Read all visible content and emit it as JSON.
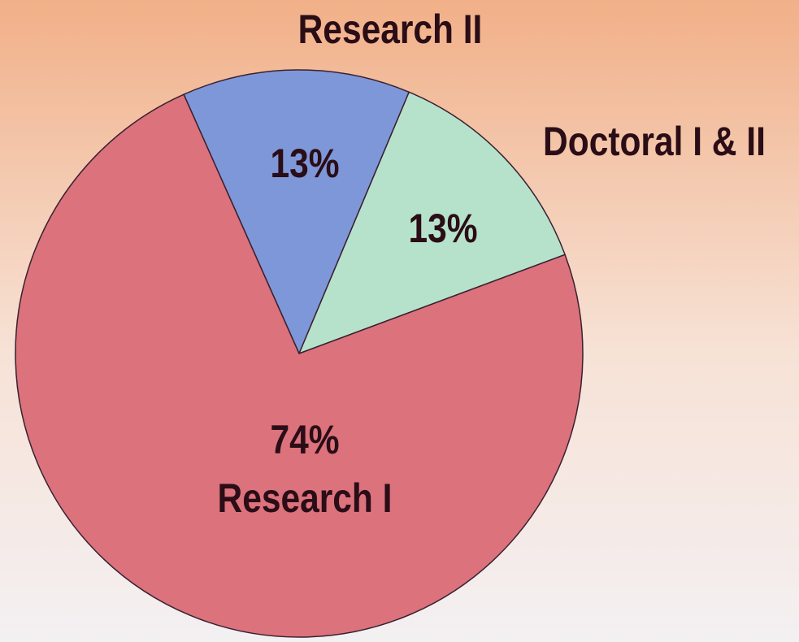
{
  "chart_data": {
    "type": "pie",
    "categories": [
      "Research II",
      "Doctoral I & II",
      "Research I"
    ],
    "values": [
      13,
      13,
      74
    ],
    "value_labels": [
      "13%",
      "13%",
      "74%"
    ],
    "colors": [
      "#7e97d8",
      "#b6e2cb",
      "#db727c"
    ]
  }
}
